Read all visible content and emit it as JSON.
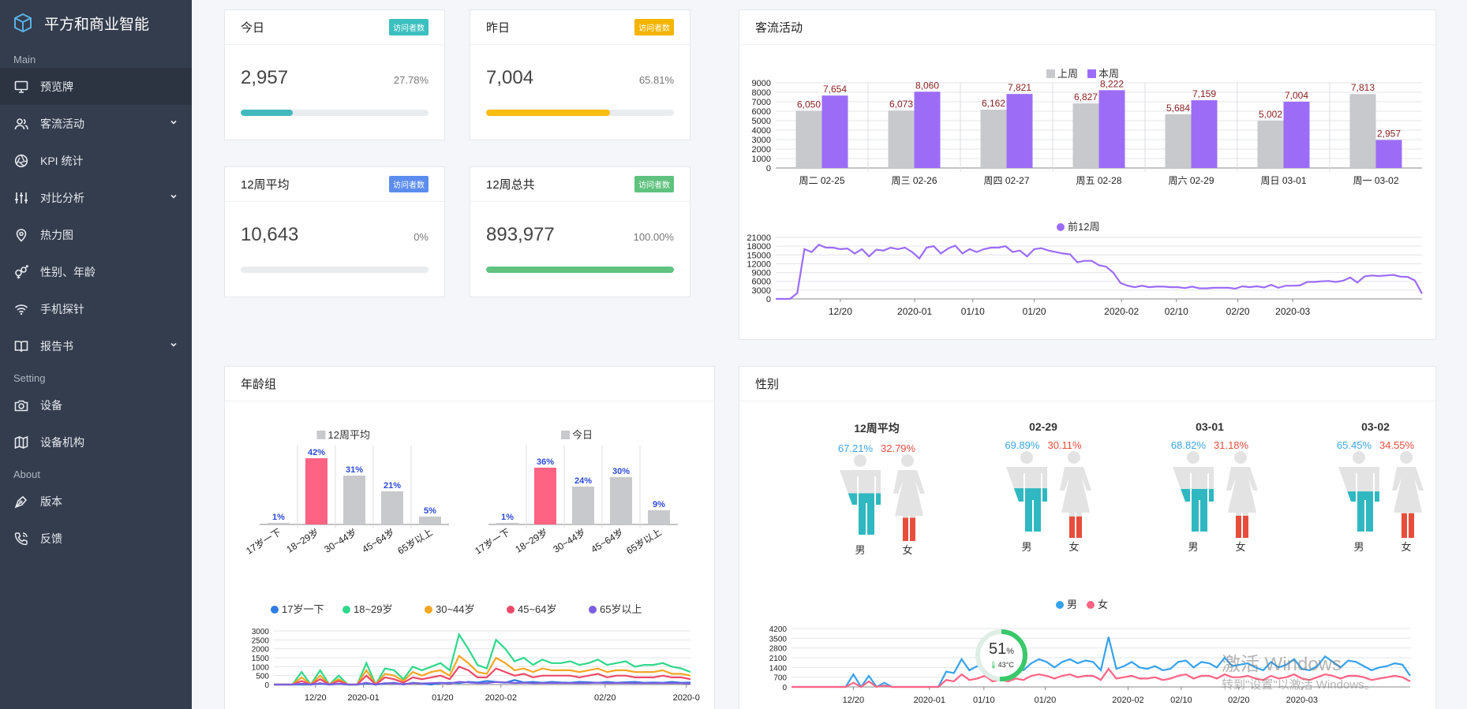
{
  "sidebar": {
    "brand": "平方和商业智能",
    "section_main": "Main",
    "section_setting": "Setting",
    "section_about": "About",
    "items": [
      {
        "label": "预览牌"
      },
      {
        "label": "客流活动"
      },
      {
        "label": "KPI 统计"
      },
      {
        "label": "对比分析"
      },
      {
        "label": "热力图"
      },
      {
        "label": "性别、年龄"
      },
      {
        "label": "手机探针"
      },
      {
        "label": "报告书"
      },
      {
        "label": "设备"
      },
      {
        "label": "设备机构"
      },
      {
        "label": "版本"
      },
      {
        "label": "反馈"
      }
    ]
  },
  "stats": [
    {
      "title": "今日",
      "badge": "访问者数",
      "badge_color": "#3bbfbf",
      "value": "2,957",
      "pct": "27.78%",
      "fill": 0.2778,
      "fill_color": "#43b9bd"
    },
    {
      "title": "昨日",
      "badge": "访问者数",
      "badge_color": "#f4b400",
      "value": "7,004",
      "pct": "65.81%",
      "fill": 0.6581,
      "fill_color": "#f7bd0f"
    },
    {
      "title": "12周平均",
      "badge": "访问者数",
      "badge_color": "#5b8def",
      "value": "10,643",
      "pct": "0%",
      "fill": 0,
      "fill_color": "#5b8def"
    },
    {
      "title": "12周总共",
      "badge": "访问者数",
      "badge_color": "#5fc27e",
      "value": "893,977",
      "pct": "100.00%",
      "fill": 1.0,
      "fill_color": "#5fc27e"
    }
  ],
  "traffic": {
    "title": "客流活动",
    "legend_last": "上周",
    "legend_this": "本周",
    "legend_12": "前12周",
    "color_last": "#c8c9cc",
    "color_this": "#9c6cf7"
  },
  "age": {
    "title": "年龄组",
    "legend_avg": "12周平均",
    "legend_today": "今日",
    "line_legend": [
      "17岁一下",
      "18~29岁",
      "30~44岁",
      "45~64岁",
      "65岁以上"
    ],
    "line_colors": [
      "#2f7de1",
      "#2ed88a",
      "#f5a623",
      "#ec4a6a",
      "#7b5fe0"
    ]
  },
  "gender": {
    "title": "性别",
    "male": "男",
    "female": "女",
    "legend_m": "男",
    "legend_f": "女",
    "items": [
      {
        "title": "12周平均",
        "m": "67.21%",
        "f": "32.79%",
        "mv": 0.6721,
        "fv": 0.3279
      },
      {
        "title": "02-29",
        "m": "69.89%",
        "f": "30.11%",
        "mv": 0.6989,
        "fv": 0.3011
      },
      {
        "title": "03-01",
        "m": "68.82%",
        "f": "31.18%",
        "mv": 0.6882,
        "fv": 0.3118
      },
      {
        "title": "03-02",
        "m": "65.45%",
        "f": "34.55%",
        "mv": 0.6545,
        "fv": 0.3455
      }
    ]
  },
  "widget": {
    "pct": "51",
    "unit": "%",
    "temp": "43°C",
    "fill": 0.51
  },
  "watermark": {
    "line1": "激活 Windows",
    "line2": "转到\"设置\"以激活 Windows。"
  },
  "chart_data": [
    {
      "type": "bar",
      "categories": [
        "周二 02-25",
        "周三 02-26",
        "周四 02-27",
        "周五 02-28",
        "周六 02-29",
        "周日 03-01",
        "周一 03-02"
      ],
      "series": [
        {
          "name": "上周",
          "values": [
            6050,
            6073,
            6162,
            6827,
            5684,
            5002,
            7813
          ]
        },
        {
          "name": "本周",
          "values": [
            7654,
            8060,
            7821,
            8222,
            7159,
            7004,
            2957
          ]
        }
      ],
      "data_labels": [
        [
          "6,050",
          "6,073",
          "6,162",
          "6,827",
          "5,684",
          "5,002",
          "7,813"
        ],
        [
          "7,654",
          "8,060",
          "7,821",
          "8,222",
          "7,159",
          "7,004",
          "2,957"
        ]
      ],
      "yticks": [
        "0",
        "1000",
        "2000",
        "3000",
        "4000",
        "5000",
        "6000",
        "7000",
        "8000",
        "9000"
      ],
      "ylim": [
        0,
        9000
      ],
      "legend": "top-center"
    },
    {
      "type": "line",
      "series": [
        {
          "name": "前12周",
          "values": [
            0,
            0,
            0,
            2000,
            17000,
            16000,
            18500,
            17500,
            17500,
            17000,
            17200,
            15500,
            17000,
            14500,
            16800,
            16500,
            17500,
            17000,
            17500,
            16000,
            13800,
            17500,
            18000,
            15500,
            17200,
            18200,
            15500,
            17000,
            16000,
            17000,
            17500,
            17500,
            18000,
            16000,
            16500,
            14500,
            17000,
            17300,
            16500,
            16000,
            15500,
            15200,
            12500,
            13000,
            13000,
            11500,
            11000,
            9000,
            5500,
            4500,
            4000,
            4500,
            4000,
            4200,
            4200,
            4000,
            4000,
            3700,
            4200,
            3600,
            3600,
            3800,
            3800,
            3800,
            3500,
            4300,
            4000,
            4300,
            3900,
            4800,
            3800,
            4500,
            4500,
            4600,
            5800,
            5800,
            6000,
            6100,
            5800,
            6200,
            7300,
            5600,
            7700,
            8000,
            7800,
            8000,
            8200,
            7600,
            7500,
            6300,
            1800
          ]
        }
      ],
      "xticks": [
        "12/20",
        "2020-01",
        "01/10",
        "01/20",
        "2020-02",
        "02/10",
        "02/20",
        "2020-03"
      ],
      "yticks": [
        "0",
        "3000",
        "6000",
        "9000",
        "12000",
        "15000",
        "18000",
        "21000"
      ],
      "ylim": [
        0,
        21000
      ],
      "legend": "top-center"
    },
    {
      "type": "bar",
      "title": "12周平均",
      "categories": [
        "17岁一下",
        "18~29岁",
        "30~44岁",
        "45~64岁",
        "65岁以上"
      ],
      "values": [
        1,
        42,
        31,
        21,
        5
      ],
      "data_labels": [
        "1%",
        "42%",
        "31%",
        "21%",
        "5%"
      ]
    },
    {
      "type": "bar",
      "title": "今日",
      "categories": [
        "17岁一下",
        "18~29岁",
        "30~44岁",
        "45~64岁",
        "65岁以上"
      ],
      "values": [
        1,
        36,
        24,
        30,
        9
      ],
      "data_labels": [
        "1%",
        "36%",
        "24%",
        "30%",
        "9%"
      ]
    },
    {
      "type": "line",
      "series": [
        {
          "name": "17岁一下",
          "values": [
            0,
            0,
            0,
            0,
            0,
            50,
            0,
            30,
            0,
            0,
            60,
            0,
            50,
            100,
            0,
            100,
            50,
            0,
            80,
            100,
            80,
            150,
            120,
            200,
            150,
            100,
            250,
            120,
            150,
            100,
            150,
            120,
            100,
            150,
            130,
            100,
            150,
            100,
            130,
            150,
            100,
            120,
            100,
            150,
            100,
            120
          ]
        },
        {
          "name": "18~29岁",
          "values": [
            0,
            0,
            0,
            700,
            0,
            800,
            0,
            500,
            0,
            0,
            1200,
            0,
            900,
            800,
            300,
            1000,
            800,
            1000,
            1200,
            800,
            2800,
            2000,
            1100,
            900,
            2500,
            2000,
            1300,
            1500,
            1100,
            1400,
            1200,
            1200,
            1300,
            1100,
            1200,
            1400,
            1100,
            1200,
            1300,
            1000,
            1100,
            1100,
            1200,
            1000,
            900,
            700
          ]
        },
        {
          "name": "30~44岁",
          "values": [
            0,
            0,
            0,
            400,
            0,
            500,
            0,
            300,
            0,
            0,
            800,
            0,
            600,
            500,
            200,
            700,
            500,
            700,
            800,
            500,
            1600,
            1200,
            700,
            600,
            1500,
            1200,
            800,
            900,
            700,
            900,
            800,
            800,
            800,
            700,
            800,
            900,
            700,
            800,
            800,
            700,
            700,
            700,
            800,
            600,
            600,
            500
          ]
        },
        {
          "name": "45~64岁",
          "values": [
            0,
            0,
            0,
            200,
            0,
            300,
            0,
            200,
            0,
            0,
            500,
            0,
            400,
            300,
            100,
            400,
            300,
            400,
            500,
            300,
            1000,
            800,
            400,
            400,
            900,
            700,
            500,
            600,
            400,
            500,
            500,
            500,
            500,
            400,
            500,
            600,
            400,
            500,
            500,
            400,
            400,
            400,
            500,
            400,
            400,
            300
          ]
        },
        {
          "name": "65岁以上",
          "values": [
            0,
            0,
            0,
            50,
            0,
            80,
            0,
            50,
            0,
            0,
            100,
            0,
            80,
            60,
            20,
            80,
            60,
            80,
            100,
            60,
            150,
            120,
            80,
            80,
            140,
            120,
            90,
            100,
            80,
            90,
            90,
            90,
            90,
            80,
            90,
            100,
            80,
            90,
            90,
            80,
            80,
            80,
            90,
            80,
            80,
            60
          ]
        }
      ],
      "xticks": [
        "12/20",
        "2020-01",
        "01/20",
        "2020-02",
        "02/20",
        "2020-0"
      ],
      "yticks": [
        "0",
        "500",
        "1000",
        "1500",
        "2000",
        "2500",
        "3000"
      ],
      "ylim": [
        0,
        3000
      ],
      "legend": "top-center"
    },
    {
      "type": "line",
      "series": [
        {
          "name": "男",
          "values": [
            0,
            0,
            0,
            0,
            0,
            0,
            0,
            0,
            900,
            0,
            800,
            0,
            300,
            0,
            0,
            0,
            0,
            0,
            0,
            0,
            1100,
            1000,
            2000,
            1200,
            1500,
            1700,
            900,
            1100,
            1000,
            1400,
            1200,
            1700,
            2000,
            1800,
            1400,
            1800,
            2000,
            1700,
            1900,
            1800,
            1200,
            3600,
            1300,
            1500,
            1800,
            1400,
            1300,
            1500,
            1200,
            1300,
            1800,
            1900,
            1400,
            1800,
            1700,
            1400,
            2100,
            1500,
            1600,
            1700,
            1400,
            1200,
            1800,
            1400,
            1600,
            2000,
            1300,
            1200,
            1500,
            2200,
            1800,
            1400,
            1900,
            1800,
            1500,
            1200,
            1400,
            1500,
            1700,
            1600,
            800
          ]
        },
        {
          "name": "女",
          "values": [
            0,
            0,
            0,
            0,
            0,
            0,
            0,
            0,
            300,
            0,
            400,
            0,
            100,
            0,
            0,
            0,
            0,
            0,
            0,
            0,
            500,
            400,
            900,
            500,
            600,
            800,
            400,
            500,
            400,
            600,
            500,
            800,
            900,
            800,
            600,
            800,
            900,
            700,
            800,
            800,
            500,
            1300,
            600,
            700,
            800,
            600,
            600,
            700,
            500,
            600,
            800,
            900,
            600,
            800,
            800,
            600,
            900,
            700,
            700,
            800,
            600,
            500,
            800,
            600,
            700,
            900,
            600,
            500,
            700,
            900,
            800,
            600,
            800,
            800,
            700,
            500,
            600,
            700,
            800,
            700,
            400
          ]
        }
      ],
      "xticks": [
        "12/20",
        "2020-01",
        "01/10",
        "01/20",
        "2020-02",
        "02/10",
        "02/20",
        "2020-03"
      ],
      "yticks": [
        "0",
        "700",
        "1400",
        "2100",
        "2800",
        "3500",
        "4200"
      ],
      "ylim": [
        0,
        4200
      ],
      "legend": "top-center"
    }
  ]
}
